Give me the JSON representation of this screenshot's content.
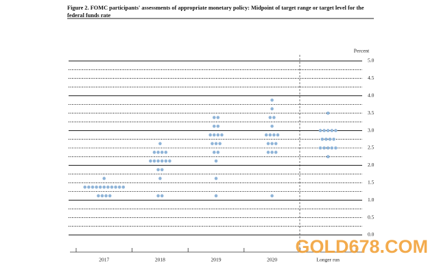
{
  "chart_data": {
    "type": "dot",
    "title": "Figure 2. FOMC participants' assessments of appropriate monetary policy: Midpoint of target range or target level for the federal funds rate",
    "y_label": "Percent",
    "annotation": "GOLD678.COM",
    "categories": [
      "2017",
      "2018",
      "2019",
      "2020",
      "Longer run"
    ],
    "values": [
      [
        1.125,
        1.125,
        1.125,
        1.125,
        1.375,
        1.375,
        1.375,
        1.375,
        1.375,
        1.375,
        1.375,
        1.375,
        1.375,
        1.375,
        1.375,
        1.625
      ],
      [
        1.125,
        1.125,
        1.625,
        1.875,
        1.875,
        2.125,
        2.125,
        2.125,
        2.125,
        2.125,
        2.125,
        2.375,
        2.375,
        2.375,
        2.375,
        2.625
      ],
      [
        1.125,
        1.625,
        2.125,
        2.375,
        2.375,
        2.625,
        2.625,
        2.625,
        2.875,
        2.875,
        2.875,
        3.125,
        3.125,
        3.375,
        3.375,
        2.875
      ],
      [
        1.125,
        2.375,
        2.375,
        2.375,
        2.625,
        2.625,
        2.625,
        2.875,
        2.875,
        2.875,
        2.875,
        3.125,
        3.375,
        3.375,
        3.625,
        3.875
      ],
      [
        2.25,
        2.5,
        2.5,
        2.5,
        2.5,
        2.5,
        2.75,
        2.75,
        2.75,
        2.75,
        3.0,
        3.0,
        3.0,
        3.0,
        3.0,
        3.5
      ]
    ],
    "color": "#8fb4d8",
    "ylim": [
      0,
      5
    ],
    "yticks": [
      {
        "value": 0,
        "label": "0.0"
      },
      {
        "value": 0.5,
        "label": "0.5"
      },
      {
        "value": 1,
        "label": "1.0"
      },
      {
        "value": 1.5,
        "label": "1.5"
      },
      {
        "value": 2,
        "label": "2.0"
      },
      {
        "value": 2.5,
        "label": "2.5"
      },
      {
        "value": 3,
        "label": "3.0"
      },
      {
        "value": 3.5,
        "label": "3.5"
      },
      {
        "value": 4,
        "label": "4.0"
      },
      {
        "value": 4.5,
        "label": "4.5"
      },
      {
        "value": 5,
        "label": "5.0"
      }
    ]
  }
}
